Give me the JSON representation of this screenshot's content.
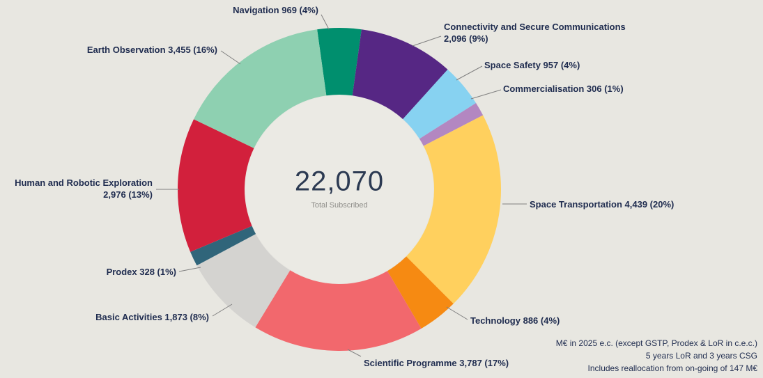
{
  "chart_data": {
    "type": "pie",
    "subtype": "donut",
    "center_value": "22,070",
    "center_label": "Total Subscribed",
    "total": 22070,
    "slices": [
      {
        "name": "Navigation",
        "value": 969,
        "display_value": "969",
        "pct": 4,
        "color": "#008f6e"
      },
      {
        "name": "Connectivity and Secure Communications",
        "value": 2096,
        "display_value": "2,096",
        "pct": 9,
        "color": "#562784"
      },
      {
        "name": "Space Safety",
        "value": 957,
        "display_value": "957",
        "pct": 4,
        "color": "#87d2f1"
      },
      {
        "name": "Commercialisation",
        "value": 306,
        "display_value": "306",
        "pct": 1,
        "color": "#b387c1"
      },
      {
        "name": "Space Transportation",
        "value": 4439,
        "display_value": "4,439",
        "pct": 20,
        "color": "#ffd05e"
      },
      {
        "name": "Technology",
        "value": 886,
        "display_value": "886",
        "pct": 4,
        "color": "#f68a12"
      },
      {
        "name": "Scientific Programme",
        "value": 3787,
        "display_value": "3,787",
        "pct": 17,
        "color": "#f2686d"
      },
      {
        "name": "Basic Activities",
        "value": 1873,
        "display_value": "1,873",
        "pct": 8,
        "color": "#d4d3d0"
      },
      {
        "name": "Prodex",
        "value": 328,
        "display_value": "328",
        "pct": 1,
        "color": "#30657a"
      },
      {
        "name": "Human and Robotic Exploration",
        "value": 2976,
        "display_value": "2,976",
        "pct": 13,
        "color": "#d2203c"
      },
      {
        "name": "Earth Observation",
        "value": 3455,
        "display_value": "3,455",
        "pct": 16,
        "color": "#8ed0b1"
      }
    ],
    "layout_hints": {
      "start_angle_deg": -7.9,
      "direction": "clockwise",
      "legend": "off",
      "labels": "outside-with-leader-lines"
    }
  },
  "notes": [
    "M€ in 2025 e.c. (except GSTP, Prodex & LoR in c.e.c.)",
    "5 years LoR and 3 years CSG",
    "Includes reallocation from on-going of 147 M€"
  ],
  "colors": {
    "background": "#e8e7e1",
    "label_text": "#1f2c4f",
    "center_text": "#2c3a52",
    "center_sub": "#8f8e8a",
    "inner_circle": "#ebeae4",
    "leader_line": "#7f7f7f"
  }
}
